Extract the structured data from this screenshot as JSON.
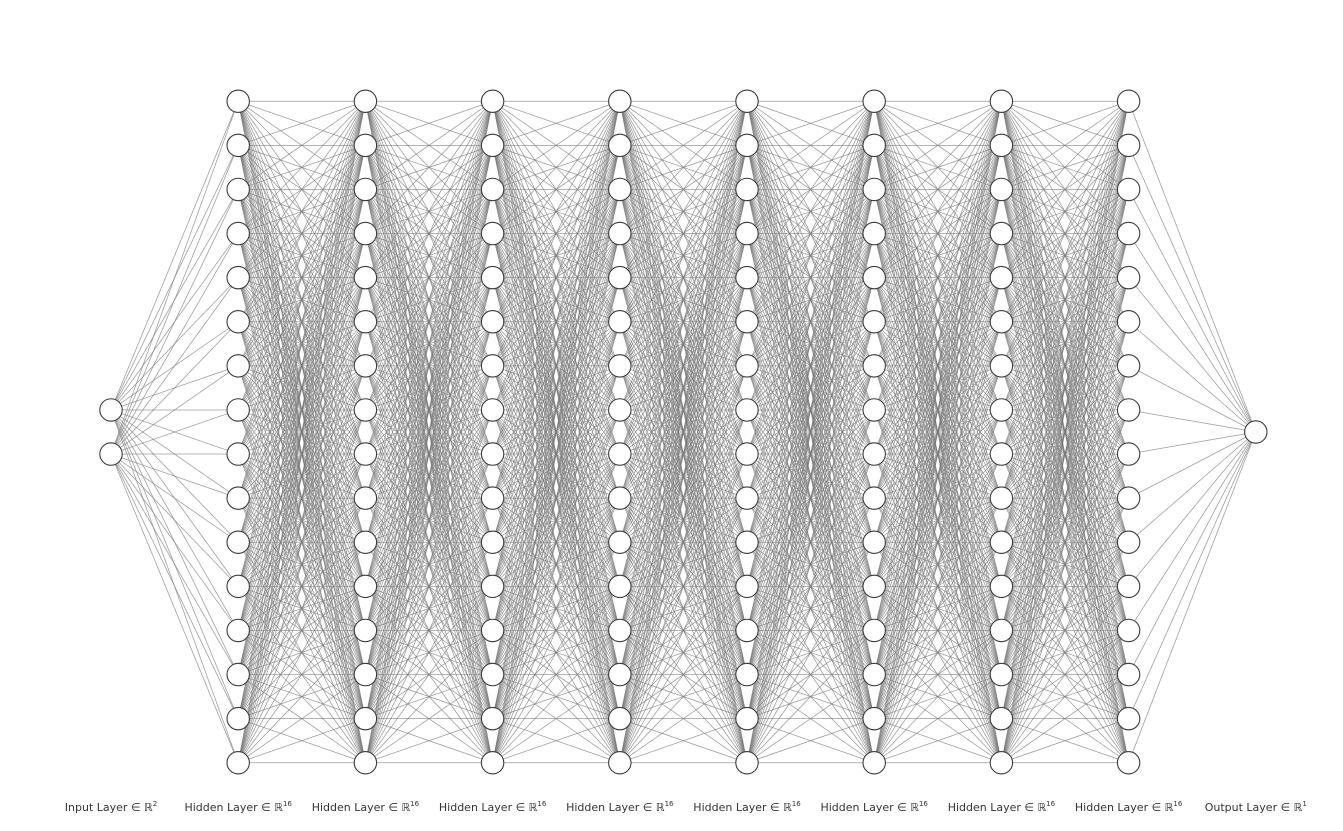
{
  "network": {
    "layers": [
      {
        "name": "Input Layer",
        "symbol": "∈ ℝ",
        "dim": "2",
        "size": 2
      },
      {
        "name": "Hidden Layer",
        "symbol": "∈ ℝ",
        "dim": "16",
        "size": 16
      },
      {
        "name": "Hidden Layer",
        "symbol": "∈ ℝ",
        "dim": "16",
        "size": 16
      },
      {
        "name": "Hidden Layer",
        "symbol": "∈ ℝ",
        "dim": "16",
        "size": 16
      },
      {
        "name": "Hidden Layer",
        "symbol": "∈ ℝ",
        "dim": "16",
        "size": 16
      },
      {
        "name": "Hidden Layer",
        "symbol": "∈ ℝ",
        "dim": "16",
        "size": 16
      },
      {
        "name": "Hidden Layer",
        "symbol": "∈ ℝ",
        "dim": "16",
        "size": 16
      },
      {
        "name": "Hidden Layer",
        "symbol": "∈ ℝ",
        "dim": "16",
        "size": 16
      },
      {
        "name": "Hidden Layer",
        "symbol": "∈ ℝ",
        "dim": "16",
        "size": 16
      },
      {
        "name": "Output Layer",
        "symbol": "∈ ℝ",
        "dim": "1",
        "size": 1
      }
    ],
    "connectivity": "fully-connected",
    "colors": {
      "edge": "#7a7a7a",
      "node_fill": "#ffffff",
      "node_stroke": "#3a3a3a",
      "label": "#333333"
    }
  }
}
